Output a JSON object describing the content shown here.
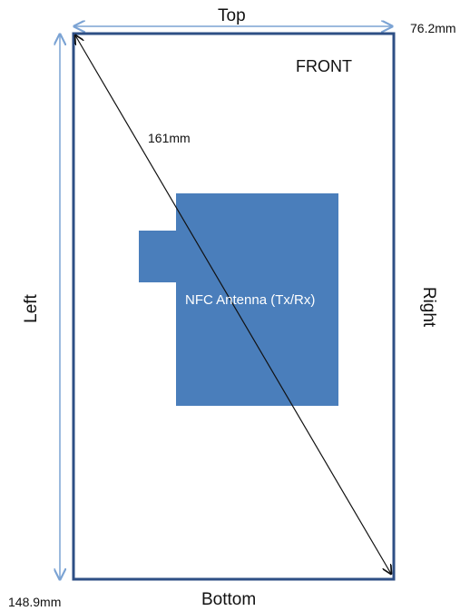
{
  "labels": {
    "top": "Top",
    "bottom": "Bottom",
    "left": "Left",
    "right": "Right",
    "front": "FRONT",
    "diagonal": "161mm",
    "width": "76.2mm",
    "height": "148.9mm",
    "antenna": "NFC Antenna (Tx/Rx)"
  },
  "colors": {
    "frame": "#2e4f85",
    "dimension_arrow": "#7ba3d4",
    "antenna_fill": "#4a7ebb",
    "diagonal_arrow": "#111111",
    "text": "#111111",
    "antenna_text": "#ffffff"
  }
}
